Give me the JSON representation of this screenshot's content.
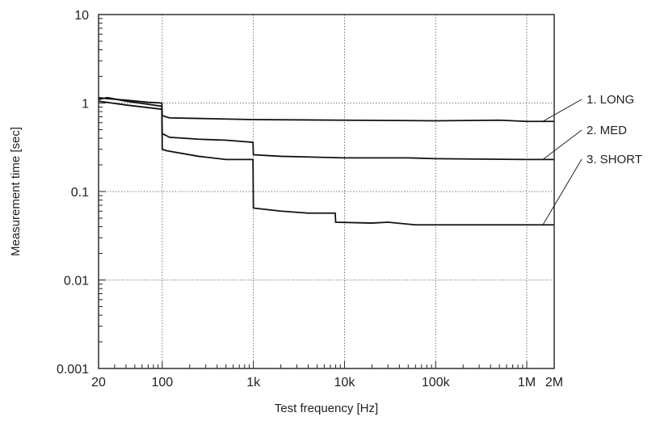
{
  "chart_data": {
    "type": "line",
    "title": "",
    "xlabel": "Test frequency [Hz]",
    "ylabel": "Measurement time [sec]",
    "xscale": "log",
    "yscale": "log",
    "xlim": [
      20,
      2000000
    ],
    "ylim": [
      0.001,
      10
    ],
    "grid": "dotted, major decades",
    "x_ticks": [
      {
        "value": 20,
        "label": "20"
      },
      {
        "value": 100,
        "label": "100"
      },
      {
        "value": 1000,
        "label": "1k"
      },
      {
        "value": 10000,
        "label": "10k"
      },
      {
        "value": 100000,
        "label": "100k"
      },
      {
        "value": 1000000,
        "label": "1M"
      },
      {
        "value": 2000000,
        "label": "2M"
      }
    ],
    "y_ticks": [
      {
        "value": 0.001,
        "label": "0.001"
      },
      {
        "value": 0.01,
        "label": "0.01"
      },
      {
        "value": 0.1,
        "label": "0.1"
      },
      {
        "value": 1,
        "label": "1"
      },
      {
        "value": 10,
        "label": "10"
      }
    ],
    "legend_placement": "right, leader lines to curve ends",
    "series": [
      {
        "name": "1. LONG",
        "points": [
          [
            20,
            1.15
          ],
          [
            25,
            1.12
          ],
          [
            40,
            1.08
          ],
          [
            70,
            1.02
          ],
          [
            99,
            1.0
          ],
          [
            100,
            0.72
          ],
          [
            120,
            0.68
          ],
          [
            250,
            0.67
          ],
          [
            1000,
            0.65
          ],
          [
            10000,
            0.64
          ],
          [
            100000,
            0.63
          ],
          [
            500000,
            0.64
          ],
          [
            1000000,
            0.62
          ],
          [
            2000000,
            0.62
          ]
        ]
      },
      {
        "name": "2. MED",
        "points": [
          [
            20,
            1.1
          ],
          [
            25,
            1.15
          ],
          [
            40,
            1.05
          ],
          [
            99,
            0.92
          ],
          [
            100,
            0.45
          ],
          [
            110,
            0.43
          ],
          [
            120,
            0.41
          ],
          [
            250,
            0.39
          ],
          [
            500,
            0.38
          ],
          [
            990,
            0.36
          ],
          [
            1000,
            0.26
          ],
          [
            2000,
            0.25
          ],
          [
            10000,
            0.24
          ],
          [
            50000,
            0.24
          ],
          [
            100000,
            0.235
          ],
          [
            1000000,
            0.23
          ],
          [
            2000000,
            0.23
          ]
        ]
      },
      {
        "name": "3. SHORT",
        "points": [
          [
            20,
            1.05
          ],
          [
            40,
            0.95
          ],
          [
            99,
            0.85
          ],
          [
            100,
            0.3
          ],
          [
            110,
            0.29
          ],
          [
            250,
            0.25
          ],
          [
            500,
            0.23
          ],
          [
            990,
            0.23
          ],
          [
            1000,
            0.065
          ],
          [
            2000,
            0.06
          ],
          [
            4000,
            0.057
          ],
          [
            7900,
            0.057
          ],
          [
            8000,
            0.045
          ],
          [
            20000,
            0.044
          ],
          [
            30000,
            0.045
          ],
          [
            60000,
            0.042
          ],
          [
            100000,
            0.042
          ],
          [
            1000000,
            0.042
          ],
          [
            2000000,
            0.042
          ]
        ]
      }
    ]
  }
}
